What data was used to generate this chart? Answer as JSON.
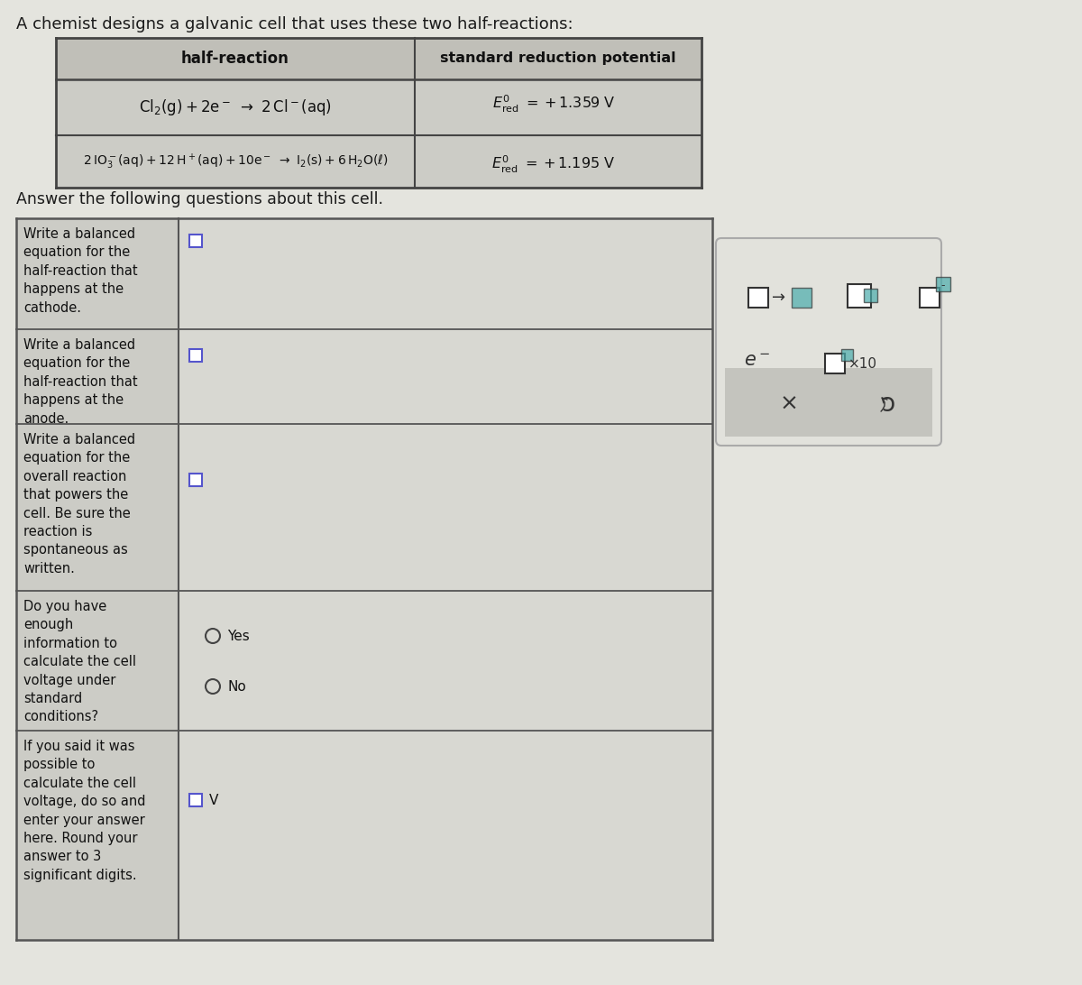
{
  "bg_color": "#e4e4de",
  "title_text": "A chemist designs a galvanic cell that uses these two half-reactions:",
  "table_header_bg": "#c0bfb8",
  "table_cell_bg": "#ccccc6",
  "table_border": "#555555",
  "header_col1": "half-reaction",
  "header_col2": "standard reduction potential",
  "row1_rxn_a": "Cl",
  "row1_rxn_b": "(g)+2e",
  "row1_rxn_c": "→  2 Cl",
  "row1_rxn_d": "(aq)",
  "row1_pot": "= +1.359 V",
  "row2_rxn": "2 IO",
  "row2_rxn_b": "(aq)+12 H",
  "row2_rxn_c": "(aq)+10e",
  "row2_rxn_d": "→  I",
  "row2_rxn_e": "(s)+6 H",
  "row2_rxn_f": "O(",
  "row2_pot": "= +1.195 V",
  "answer_intro": "Answer the following questions about this cell.",
  "q1": "Write a balanced\nequation for the\nhalf-reaction that\nhappens at the\ncathode.",
  "q2": "Write a balanced\nequation for the\nhalf-reaction that\nhappens at the\nanode.",
  "q3": "Write a balanced\nequation for the\noverall reaction\nthat powers the\ncell. Be sure the\nreaction is\nspontaneous as\nwritten.",
  "q4": "Do you have\nenough\ninformation to\ncalculate the cell\nvoltage under\nstandard\nconditions?",
  "q5": "If you said it was\npossible to\ncalculate the cell\nvoltage, do so and\nenter your answer\nhere. Round your\nanswer to 3\nsignificant digits.",
  "yes_text": "Yes",
  "no_text": "No",
  "v_text": "V",
  "answer_col_bg": "#d8d8d2",
  "label_col_bg": "#ccccC6",
  "box_color": "#5555cc",
  "teal_color": "#4aacac",
  "panel_bg": "#e2e2dc",
  "panel_border": "#aaaaaa",
  "strip_bg": "#c4c4be"
}
